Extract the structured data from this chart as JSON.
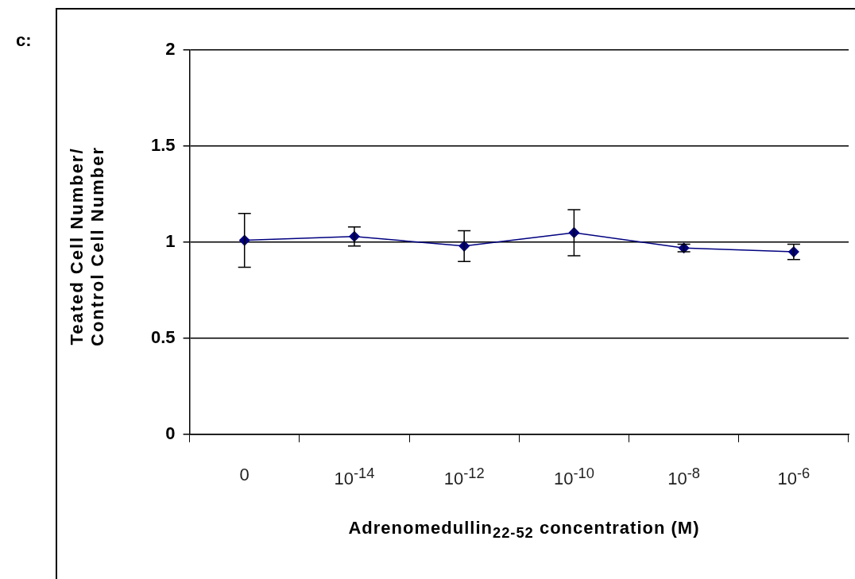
{
  "chart_data": {
    "type": "line",
    "categories": [
      "0",
      "10$^{-14}$",
      "10$^{-12}$",
      "10$^{-10}$",
      "10$^{-8}$",
      "10$^{-6}$"
    ],
    "series": [
      {
        "color": "#000080",
        "values": [
          1.01,
          1.03,
          0.98,
          1.05,
          0.97,
          0.95
        ],
        "errors": [
          0.14,
          0.05,
          0.08,
          0.12,
          0.02,
          0.04
        ]
      }
    ],
    "xlabel": "Adrenomedullin$_{22-52}$ concentration (M)",
    "ylabel": "Teated Cell Number/ Control Cell Number",
    "ylim": [
      0,
      2
    ],
    "yticks": [
      0,
      0.5,
      1,
      1.5,
      2
    ],
    "grid": "y",
    "legend": false,
    "marker": "diamond",
    "line_style": "solid",
    "annotations": [
      "c:"
    ]
  }
}
